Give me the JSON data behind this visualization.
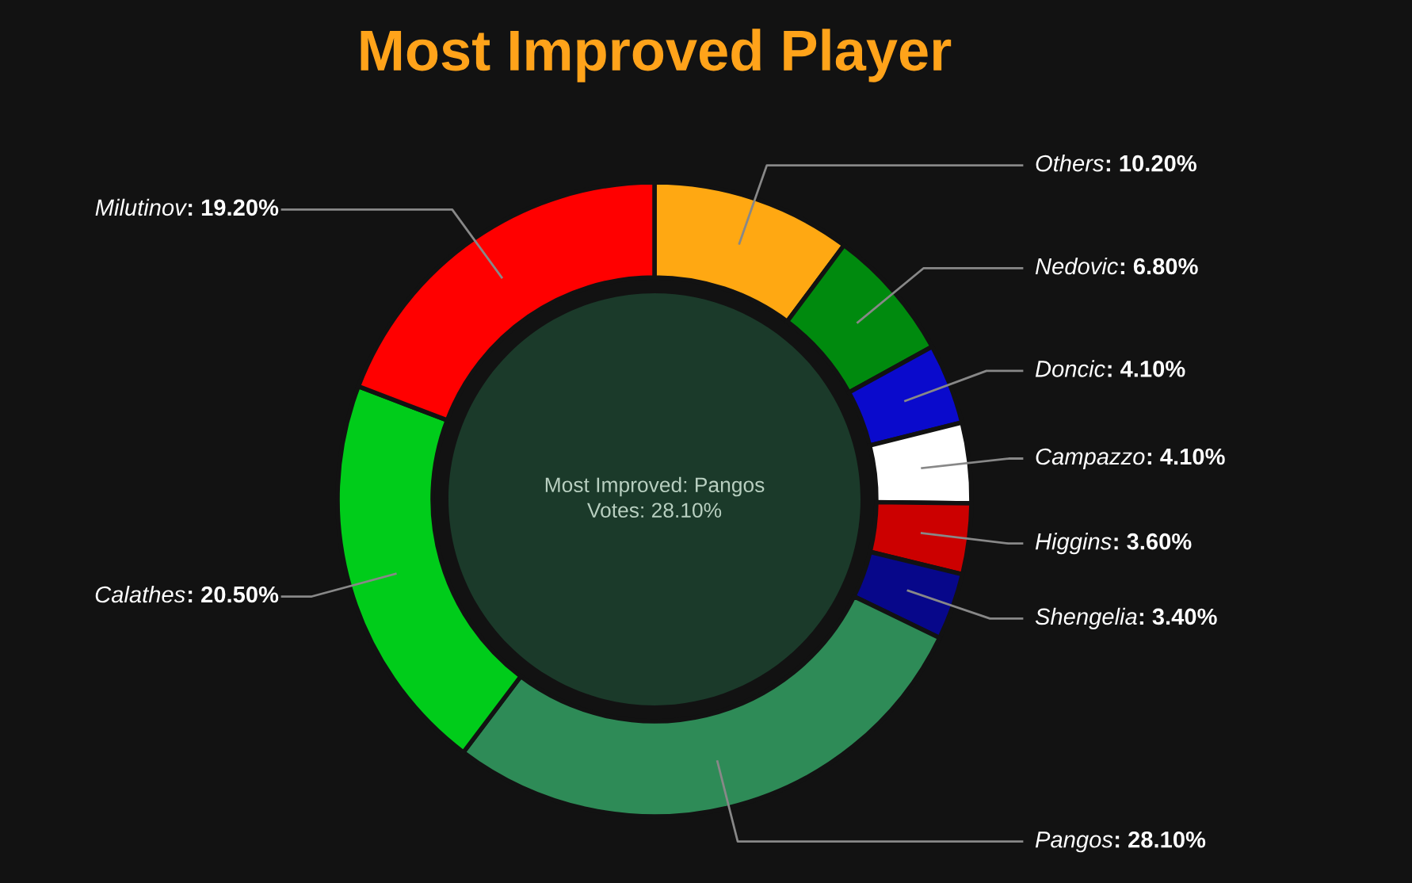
{
  "chart_data": {
    "type": "donut",
    "title": "Most Improved Player",
    "categories": [
      "Others",
      "Nedovic",
      "Doncic",
      "Campazzo",
      "Higgins",
      "Shengelia",
      "Pangos",
      "Calathes",
      "Milutinov"
    ],
    "values": [
      10.2,
      6.8,
      4.1,
      4.1,
      3.6,
      3.4,
      28.1,
      20.5,
      19.2
    ],
    "value_labels": [
      ": 10.20%",
      ": 6.80%",
      ": 4.10%",
      ": 4.10%",
      ": 3.60%",
      ": 3.40%",
      ": 28.10%",
      ": 20.50%",
      ": 19.20%"
    ],
    "colors": [
      "#ffa812",
      "#008a0e",
      "#0a0acc",
      "#ffffff",
      "#cc0000",
      "#07078a",
      "#2e8b57",
      "#00cc1a",
      "#ff0000"
    ],
    "annotations": [
      "Most Improved: Pangos",
      "Votes: 28.10%"
    ]
  }
}
